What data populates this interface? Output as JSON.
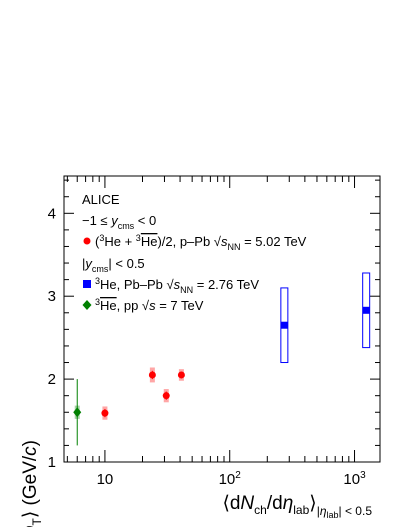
{
  "chart_data": {
    "type": "scatter",
    "x_scale": "log",
    "xlim": [
      4.7,
      1600
    ],
    "ylim": [
      1,
      4.45
    ],
    "xlabel": "⟨dN_ch/dη_lab⟩_{|η_lab| < 0.5}",
    "ylabel": "⟨p_T⟩ (GeV/c)",
    "x_ticks": [
      "10",
      "10^2",
      "10^3"
    ],
    "y_ticks": [
      "1",
      "2",
      "3",
      "4"
    ],
    "legend": {
      "header": "ALICE",
      "group1": "−1 ≤ y_cms < 0",
      "group2": "|y_cms| < 0.5"
    },
    "series": [
      {
        "name": "(³He + ³He‾)/2, p–Pb √s_NN = 5.02 TeV",
        "marker": "circle",
        "color": "#ff0000",
        "points": [
          {
            "x": 10.0,
            "y": 1.59,
            "stat": 0.05,
            "sys": 0.08
          },
          {
            "x": 24.0,
            "y": 2.05,
            "stat": 0.05,
            "sys": 0.09
          },
          {
            "x": 31.0,
            "y": 1.8,
            "stat": 0.05,
            "sys": 0.08
          },
          {
            "x": 41.0,
            "y": 2.05,
            "stat": 0.04,
            "sys": 0.07
          }
        ]
      },
      {
        "name": "³He, Pb–Pb √s_NN = 2.76 TeV",
        "marker": "square",
        "color": "#0000ff",
        "points": [
          {
            "x": 274,
            "y": 2.65,
            "stat": 0.02,
            "sys": 0.45
          },
          {
            "x": 1240,
            "y": 2.83,
            "stat": 0.02,
            "sys": 0.45
          }
        ]
      },
      {
        "name": "³He‾, pp √s = 7 TeV",
        "marker": "diamond",
        "color": "#008000",
        "points": [
          {
            "x": 6.0,
            "y": 1.6,
            "stat": 0.4,
            "sys": 0.08
          }
        ]
      }
    ]
  }
}
